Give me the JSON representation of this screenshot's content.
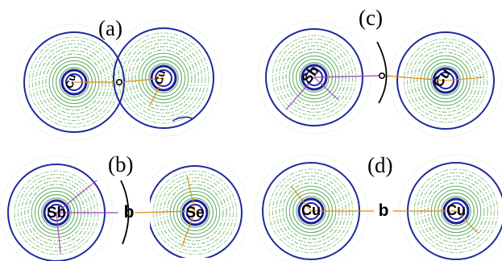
{
  "figure": {
    "panels": [
      {
        "id": "a",
        "label": "(a)",
        "left_atom": "Cu",
        "right_atom": "Cu"
      },
      {
        "id": "b",
        "label": "(b)",
        "left_atom": "Sb",
        "right_atom": "Se",
        "bcp_symbol": "b"
      },
      {
        "id": "c",
        "label": "(c)",
        "left_atom": "Sb",
        "right_atom": "Cu"
      },
      {
        "id": "d",
        "label": "(d)",
        "left_atom": "Cu",
        "right_atom": "Cu",
        "bcp_symbol": "b"
      }
    ],
    "colors": {
      "outer_contour": "#1c2a9c",
      "inner_contour": "#1a8a1a",
      "bond_path": "#e08a10",
      "gradient_path": "#a040c0",
      "nucleus_ring": "#2020a0",
      "text": "#000000"
    }
  }
}
